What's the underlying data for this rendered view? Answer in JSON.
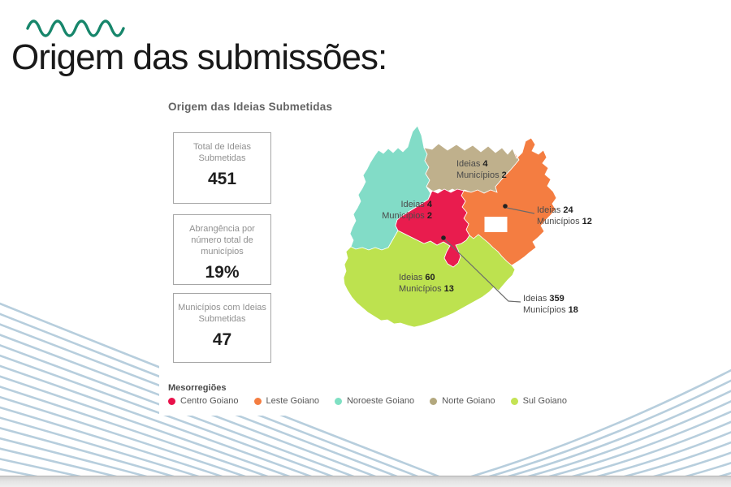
{
  "page": {
    "title": "Origem das submissões:",
    "brand_wave_color": "#17866b"
  },
  "chart": {
    "title": "Origem das Ideias Submetidas",
    "cards": [
      {
        "label": "Total de Ideias Submetidas",
        "value": "451"
      },
      {
        "label": "Abrangência por número total de municípios",
        "value": "19%"
      },
      {
        "label": "Municípios com Ideias Submetidas",
        "value": "47"
      }
    ],
    "map": {
      "word_ideias": "Ideias",
      "word_municipios": "Municípios",
      "labels": [
        {
          "region": "Norte Goiano",
          "ideias": "4",
          "municipios": "2"
        },
        {
          "region": "Noroeste Goiano",
          "ideias": "4",
          "municipios": "2"
        },
        {
          "region": "Leste Goiano",
          "ideias": "24",
          "municipios": "12"
        },
        {
          "region": "Sul Goiano",
          "ideias": "60",
          "municipios": "13"
        },
        {
          "region": "Centro Goiano",
          "ideias": "359",
          "municipios": "18"
        }
      ],
      "regions": {
        "centro": "#e91c4e",
        "leste": "#f47d41",
        "noroeste": "#82dcc7",
        "norte": "#bfb08c",
        "sul": "#bde24f"
      }
    },
    "legend": {
      "title": "Mesorregiões",
      "items": [
        {
          "label": "Centro Goiano",
          "color": "#e8114a"
        },
        {
          "label": "Leste Goiano",
          "color": "#f47d41"
        },
        {
          "label": "Noroeste Goiano",
          "color": "#7fe0c3"
        },
        {
          "label": "Norte Goiano",
          "color": "#b3a87e"
        },
        {
          "label": "Sul Goiano",
          "color": "#c4e354"
        }
      ]
    }
  },
  "chart_data": {
    "type": "map",
    "title": "Origem das Ideias Submetidas",
    "legend_title": "Mesorregiões",
    "legend_position": "bottom",
    "regions": [
      {
        "name": "Centro Goiano",
        "ideias": 359,
        "municipios": 18,
        "color": "#e91c4e"
      },
      {
        "name": "Leste Goiano",
        "ideias": 24,
        "municipios": 12,
        "color": "#f47d41"
      },
      {
        "name": "Noroeste Goiano",
        "ideias": 4,
        "municipios": 2,
        "color": "#82dcc7"
      },
      {
        "name": "Norte Goiano",
        "ideias": 4,
        "municipios": 2,
        "color": "#bfb08c"
      },
      {
        "name": "Sul Goiano",
        "ideias": 60,
        "municipios": 13,
        "color": "#bde24f"
      }
    ],
    "kpis": [
      {
        "label": "Total de Ideias Submetidas",
        "value": 451
      },
      {
        "label": "Abrangência por número total de municípios",
        "value": "19%"
      },
      {
        "label": "Municípios com Ideias Submetidas",
        "value": 47
      }
    ]
  }
}
